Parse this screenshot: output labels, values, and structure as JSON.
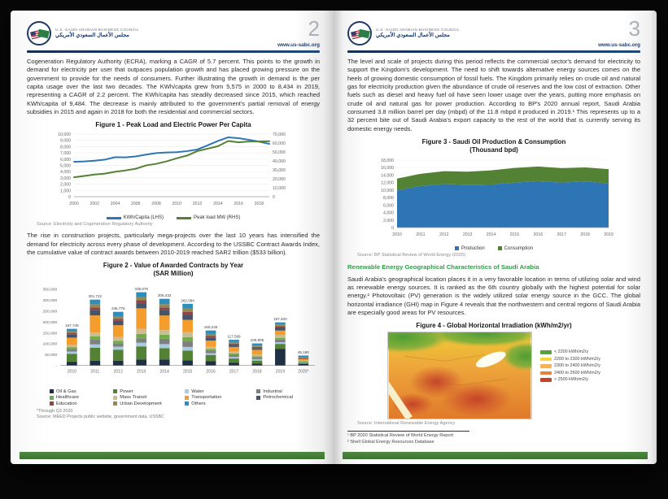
{
  "brand": {
    "accent_navy": "#1d3a66",
    "accent_green": "#2f9e48",
    "footer_green": "#46823c"
  },
  "logo": {
    "org_en": "U.S.-SAUDI ARABIAN BUSINESS COUNCIL",
    "org_ar": "مجلس الأعمال السعودي الأمريكي"
  },
  "left_page": {
    "page_number": "2",
    "website": "www.us-sabc.org",
    "para1": "Cogeneration Regulatory Authority (ECRA), marking a CAGR of 5.7 percent. This points to the growth in demand for electricity per user that outpaces population growth and has placed growing pressure on the government to provide for the needs of consumers. Further illustrating the growth in demand is the per capita usage over the last two decades. The KWh/capita grew from 5,575 in 2000 to 8,434 in 2019, representing a CAGR of 2.2 percent. The KWh/capita has steadily decreased since 2015, which reached KWh/capita of 9,484. The decrease is mainly attributed to the government's partial removal of energy subsidies in 2015 and again in 2018 for both the residential and commercial sectors.",
    "para2": "The rise in construction projects, particularly mega-projects over the last 10 years has intensified the demand for electricity across every phase of development. According to the USSBC Contract Awards Index, the cumulative value of contract awards between 2010-2019 reached SAR2 trillion ($533 billion)."
  },
  "right_page": {
    "page_number": "3",
    "website": "www.us-sabc.org",
    "para1": "The level and scale of projects during this period reflects the commercial sector's demand for electricity to support the Kingdom's development. The need to shift towards alternative energy sources comes on the heels of growing domestic consumption of fossil fuels. The Kingdom primarily relies on crude oil and natural gas for electricity production given the abundance of crude oil reserves and the low cost of extraction. Other fuels such as diesel and heavy fuel oil have seen lower usage over the years, putting more emphasis on crude oil and natural gas for power production. According to BP's 2020 annual report, Saudi Arabia consumed 3.8 million barrel per day (mbpd) of the 11.8 mbpd it produced in 2019.¹ This represents up to a 32 percent bite out of Saudi Arabia's export capacity to the rest of the world that is currently serving its domestic energy needs.",
    "heading": "Renewable Energy Geographical Characteristics of Saudi Arabia",
    "para2": "Saudi Arabia's geographical location places it in a very favorable location in terms of utilizing solar and wind as renewable energy sources. It is ranked as the 6th country globally with the highest potential for solar energy.² Photovoltaic (PV) generation is the widely utilized solar energy source in the GCC. The global horizontal irradiance (GHI) map in Figure 4 reveals that the northwestern and central regions of Saudi Arabia are especially good areas for PV resources.",
    "footnotes": [
      "¹ BP 2020 Statistical Review of World Energy Report",
      "² Shell Global Energy Resources Database"
    ]
  },
  "chart_data": [
    {
      "id": "fig1",
      "type": "line",
      "title": "Figure 1 - Peak Load and Electric Power Per Capita",
      "x": [
        2000,
        2001,
        2002,
        2003,
        2004,
        2005,
        2006,
        2007,
        2008,
        2009,
        2010,
        2011,
        2012,
        2013,
        2014,
        2015,
        2016,
        2017,
        2018,
        2019
      ],
      "series": [
        {
          "name": "KWh/Capita (LHS)",
          "color": "#2e75b6",
          "axis": "left",
          "values": [
            5575,
            5633,
            5750,
            5919,
            6318,
            6281,
            6424,
            6724,
            6963,
            7069,
            7106,
            7281,
            7536,
            8200,
            8900,
            9484,
            9350,
            9100,
            8800,
            8434
          ]
        },
        {
          "name": "Peak load MW (RHS)",
          "color": "#548235",
          "axis": "right",
          "values": [
            21673,
            23155,
            24747,
            25790,
            27847,
            29366,
            31240,
            34953,
            36761,
            39500,
            43000,
            46000,
            51000,
            53700,
            56500,
            62260,
            60800,
            61700,
            61700,
            62100
          ]
        }
      ],
      "left_axis": {
        "min": 0,
        "max": 10000,
        "step": 1000
      },
      "right_axis": {
        "min": 0,
        "max": 70000,
        "step": 10000
      },
      "legend_position": "bottom",
      "source": "Source: Electricity and Cogeneration Regulatory Authority"
    },
    {
      "id": "fig2",
      "type": "bar",
      "stacked": true,
      "title": "Figure 2 - Value of Awarded Contracts by Year",
      "subtitle": "(SAR Million)",
      "categories": [
        "2010",
        "2011",
        "2012",
        "2013",
        "2014",
        "2015",
        "2016",
        "2017",
        "2018",
        "2019",
        "2020*"
      ],
      "totals": [
        167745,
        301722,
        245776,
        335675,
        305432,
        282584,
        160245,
        117599,
        100905,
        197400,
        45190
      ],
      "sectors": [
        {
          "name": "Oil & Gas",
          "color": "#1f3044"
        },
        {
          "name": "Power",
          "color": "#548235"
        },
        {
          "name": "Water",
          "color": "#a6cbe3"
        },
        {
          "name": "Industrial",
          "color": "#7f7f7f"
        },
        {
          "name": "Healthcare",
          "color": "#70ad47"
        },
        {
          "name": "Mass Transit",
          "color": "#cbbd93"
        },
        {
          "name": "Transportation",
          "color": "#f59d2c"
        },
        {
          "name": "Petrochemical",
          "color": "#44546a"
        },
        {
          "name": "Education",
          "color": "#8c4646"
        },
        {
          "name": "Urban Development",
          "color": "#938953"
        },
        {
          "name": "Others",
          "color": "#2f8dbb"
        }
      ],
      "shares": [
        [
          0.1,
          0.22,
          0.06,
          0.07,
          0.05,
          0.06,
          0.2,
          0.08,
          0.04,
          0.05,
          0.07
        ],
        [
          0.07,
          0.2,
          0.05,
          0.07,
          0.05,
          0.06,
          0.26,
          0.08,
          0.04,
          0.05,
          0.07
        ],
        [
          0.09,
          0.2,
          0.06,
          0.06,
          0.05,
          0.07,
          0.22,
          0.08,
          0.04,
          0.05,
          0.08
        ],
        [
          0.08,
          0.18,
          0.05,
          0.06,
          0.06,
          0.07,
          0.28,
          0.07,
          0.04,
          0.04,
          0.07
        ],
        [
          0.09,
          0.17,
          0.06,
          0.08,
          0.06,
          0.07,
          0.22,
          0.08,
          0.04,
          0.05,
          0.08
        ],
        [
          0.08,
          0.16,
          0.06,
          0.09,
          0.07,
          0.08,
          0.2,
          0.08,
          0.05,
          0.05,
          0.08
        ],
        [
          0.12,
          0.18,
          0.05,
          0.07,
          0.05,
          0.06,
          0.18,
          0.08,
          0.05,
          0.06,
          0.1
        ],
        [
          0.11,
          0.16,
          0.06,
          0.07,
          0.07,
          0.07,
          0.18,
          0.08,
          0.05,
          0.06,
          0.09
        ],
        [
          0.08,
          0.14,
          0.06,
          0.07,
          0.06,
          0.08,
          0.22,
          0.08,
          0.05,
          0.06,
          0.1
        ],
        [
          0.38,
          0.12,
          0.04,
          0.06,
          0.04,
          0.07,
          0.1,
          0.07,
          0.03,
          0.04,
          0.05
        ],
        [
          0.14,
          0.12,
          0.06,
          0.06,
          0.05,
          0.06,
          0.16,
          0.07,
          0.05,
          0.06,
          0.17
        ]
      ],
      "y_axis": {
        "min": 0,
        "max": 350000,
        "step": 50000,
        "zero_label": "-"
      },
      "note": "*Through Q3 2020",
      "source": "Source: MEED Projects public website, government data, USSBC"
    },
    {
      "id": "fig3",
      "type": "area",
      "stacked": true,
      "title": "Figure 3 - Saudi Oil Production & Consumption",
      "subtitle": "(Thousand bpd)",
      "x": [
        2010,
        2011,
        2012,
        2013,
        2014,
        2015,
        2016,
        2017,
        2018,
        2019
      ],
      "series": [
        {
          "name": "Production",
          "color": "#2e75b6",
          "values": [
            9865,
            11100,
            11600,
            11400,
            11500,
            12000,
            12400,
            12000,
            12300,
            11800
          ]
        },
        {
          "name": "Consumption",
          "color": "#548235",
          "values": [
            3200,
            3250,
            3450,
            3500,
            3750,
            3900,
            3900,
            3850,
            3750,
            3800
          ]
        }
      ],
      "y_axis": {
        "min": 0,
        "max": 18000,
        "step": 2000
      },
      "legend_position": "bottom",
      "source": "Source: BP Statistical Review of World Energy (2020)"
    },
    {
      "id": "fig4",
      "type": "heatmap",
      "title": "Figure 4 - Global Horizontal Irradiation (kWh/m2/yr)",
      "legend": [
        {
          "label": "< 2200 kWh/m2/y",
          "color": "#55a23c"
        },
        {
          "label": "2200 to 2300 kWh/m2/y",
          "color": "#f5d53a"
        },
        {
          "label": "2300 to 2400 kWh/m2/y",
          "color": "#f3b261"
        },
        {
          "label": "2400 to 2500 kWh/m2/y",
          "color": "#e8813c"
        },
        {
          "label": "> 2500 kWh/m2/y",
          "color": "#c6432a"
        }
      ],
      "source": "Source: International Renewable Energy Agency"
    }
  ]
}
